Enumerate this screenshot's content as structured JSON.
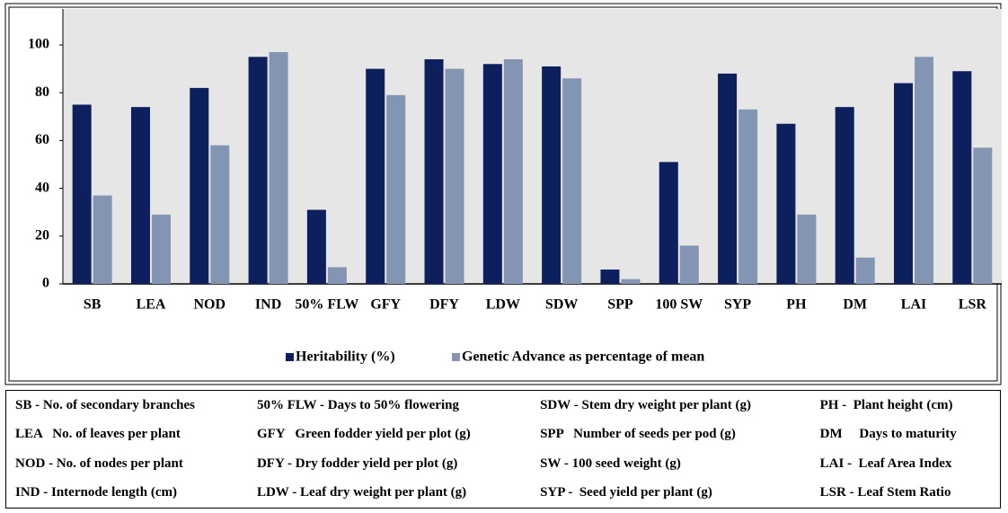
{
  "chart_data": {
    "type": "bar",
    "categories": [
      "SB",
      "LEA",
      "NOD",
      "IND",
      "50% FLW",
      "GFY",
      "DFY",
      "LDW",
      "SDW",
      "SPP",
      "100 SW",
      "SYP",
      "PH",
      "DM",
      "LAI",
      "LSR"
    ],
    "series": [
      {
        "name": "Heritability (%)",
        "color": "#0d1f5c",
        "values": [
          75,
          74,
          82,
          95,
          31,
          90,
          94,
          92,
          91,
          6,
          51,
          88,
          67,
          74,
          84,
          89
        ]
      },
      {
        "name": "Genetic Advance as percentage of mean",
        "color": "#8495b3",
        "values": [
          37,
          29,
          58,
          97,
          7,
          79,
          90,
          94,
          86,
          2,
          16,
          73,
          29,
          11,
          95,
          57
        ]
      }
    ],
    "ylim": [
      0,
      100
    ],
    "yticks": [
      0,
      20,
      40,
      60,
      80,
      100
    ],
    "legend": "bottom"
  },
  "table": {
    "rows": [
      [
        "SB - No. of secondary branches",
        "50% FLW - Days to 50% flowering",
        "SDW - Stem dry weight per plant (g)",
        "PH -  Plant height (cm)"
      ],
      [
        "LEA   No. of leaves per plant",
        "GFY   Green fodder yield per plot (g)",
        "SPP   Number of seeds per pod (g)",
        "DM     Days to maturity"
      ],
      [
        "NOD - No. of nodes per plant",
        "DFY - Dry fodder yield per plot (g)",
        "SW - 100 seed weight (g)",
        "LAI -  Leaf Area Index"
      ],
      [
        "IND - Internode length (cm)",
        "LDW - Leaf dry weight per plant (g)",
        "SYP -  Seed yield per plant (g)",
        "LSR - Leaf Stem Ratio"
      ]
    ]
  }
}
